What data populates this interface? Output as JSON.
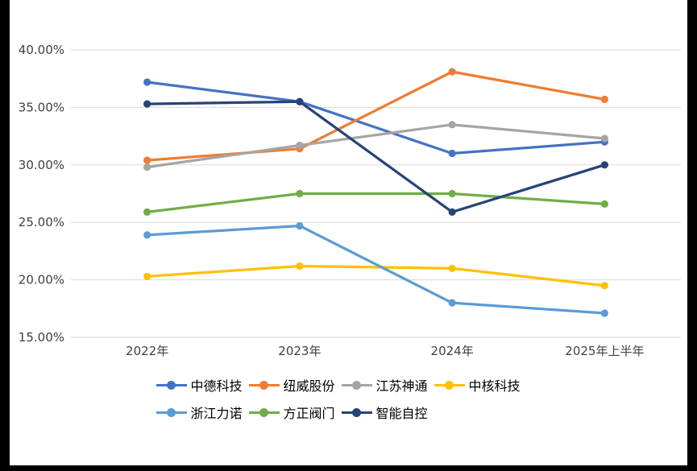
{
  "colors": {
    "background": "#000000",
    "panel": "#ffffff",
    "gridline": "#d9d9d9",
    "axis_text": "#404040"
  },
  "chart_data": {
    "type": "line",
    "title": "",
    "xlabel": "",
    "ylabel": "",
    "grid": true,
    "legend_position": "bottom",
    "categories": [
      "2022年",
      "2023年",
      "2024年",
      "2025年上半年"
    ],
    "ylim": [
      15,
      40
    ],
    "ytick_step": 5,
    "ytick_labels": [
      "15.00%",
      "20.00%",
      "25.00%",
      "30.00%",
      "35.00%",
      "40.00%"
    ],
    "series": [
      {
        "name": "中德科技",
        "color": "#4472C4",
        "values": [
          37.2,
          35.5,
          31.0,
          32.0
        ]
      },
      {
        "name": "纽威股份",
        "color": "#ED7D31",
        "values": [
          30.4,
          31.4,
          38.1,
          35.7
        ]
      },
      {
        "name": "江苏神通",
        "color": "#A5A5A5",
        "values": [
          29.8,
          31.7,
          33.5,
          32.3
        ]
      },
      {
        "name": "中核科技",
        "color": "#FFC000",
        "values": [
          20.3,
          21.2,
          21.0,
          19.5
        ]
      },
      {
        "name": "浙江力诺",
        "color": "#5B9BD5",
        "values": [
          23.9,
          24.7,
          18.0,
          17.1
        ]
      },
      {
        "name": "方正阀门",
        "color": "#70AD47",
        "values": [
          25.9,
          27.5,
          27.5,
          26.6
        ]
      },
      {
        "name": "智能自控",
        "color": "#264478",
        "values": [
          35.3,
          35.5,
          25.9,
          30.0
        ]
      }
    ]
  }
}
